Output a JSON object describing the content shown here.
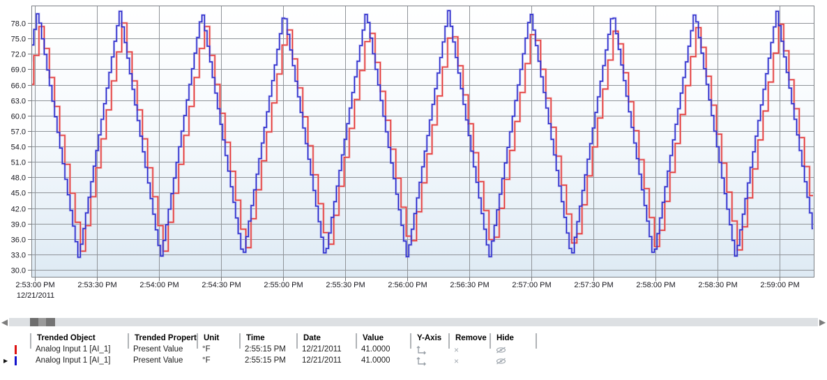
{
  "chart_data": {
    "type": "line",
    "title": "",
    "grid": true,
    "legend_position": "table-below",
    "x_axis": {
      "tick_labels": [
        "2:53:00 PM",
        "2:53:30 PM",
        "2:54:00 PM",
        "2:54:30 PM",
        "2:55:00 PM",
        "2:55:30 PM",
        "2:56:00 PM",
        "2:56:30 PM",
        "2:57:00 PM",
        "2:57:30 PM",
        "2:58:00 PM",
        "2:58:30 PM",
        "2:59:00 PM"
      ],
      "date_label": "12/21/2011",
      "tick_interval_seconds": 30,
      "seconds_visible": 378
    },
    "y_axis": {
      "tick_labels": [
        "78.0",
        "75.0",
        "72.0",
        "69.0",
        "66.0",
        "63.0",
        "60.0",
        "57.0",
        "54.0",
        "51.0",
        "48.0",
        "45.0",
        "42.0",
        "39.0",
        "36.0",
        "33.0",
        "30.0"
      ],
      "min": 30.0,
      "max": 78.0,
      "step": 3.0
    },
    "series": [
      {
        "name": "Analog Input 1 [AI_1] red pen",
        "color": "#e03232",
        "halo_color": "rgba(242,140,140,0.65)",
        "waveform": {
          "shape": "triangle-step",
          "min": 33.3,
          "max": 78.0,
          "period_seconds": 39.7,
          "first_peak_seconds": 2.3,
          "sample_interval_seconds": 2.5
        }
      },
      {
        "name": "Analog Input 1 [AI_1] blue pen",
        "color": "#1f1fc8",
        "halo_color": "rgba(125,125,230,0.55)",
        "waveform": {
          "shape": "triangle-step",
          "min": 32.2,
          "max": 80.4,
          "period_seconds": 39.7,
          "first_peak_seconds": 1.0,
          "sample_interval_seconds": 1.25
        }
      }
    ]
  },
  "scrollbar": {
    "left_arrow": "◀",
    "right_arrow": "▶"
  },
  "table": {
    "headers": [
      "Trended Object",
      "Trended Property",
      "Unit",
      "Time",
      "Date",
      "Value",
      "Y-Axis",
      "Remove",
      "Hide"
    ],
    "rows": [
      {
        "marker_color": "#dd1111",
        "selected": false,
        "trended_object": "Analog Input 1 [AI_1]",
        "trended_property": "Present Value",
        "unit": "°F",
        "time": "2:55:15 PM",
        "date": "12/21/2011",
        "value": "41.0000"
      },
      {
        "marker_color": "#1212cc",
        "selected": true,
        "trended_object": "Analog Input 1 [AI_1]",
        "trended_property": "Present Value",
        "unit": "°F",
        "time": "2:55:15 PM",
        "date": "12/21/2011",
        "value": "41.0000"
      }
    ],
    "selected_row_arrow": "▶"
  }
}
